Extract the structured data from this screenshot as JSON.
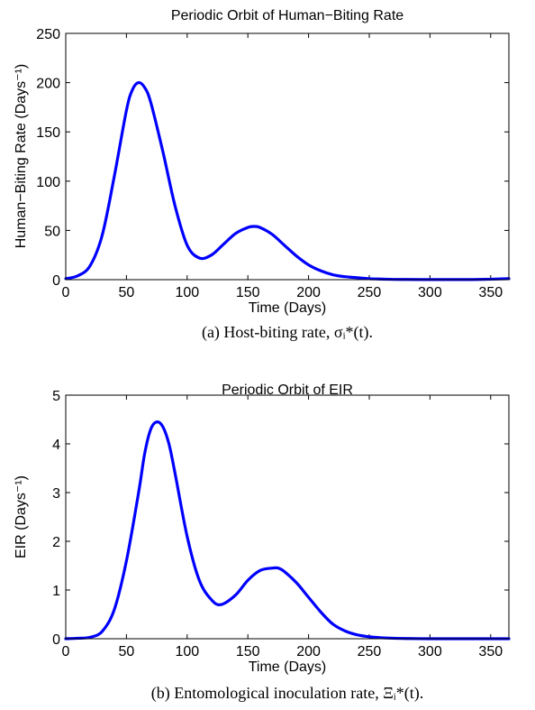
{
  "chart_data": [
    {
      "type": "line",
      "title": "Periodic Orbit of Human−Biting Rate",
      "xlabel": "Time (Days)",
      "ylabel": "Human−Biting Rate (Days⁻¹)",
      "xlim": [
        0,
        365
      ],
      "ylim": [
        0,
        250
      ],
      "xticks": [
        0,
        50,
        100,
        150,
        200,
        250,
        300,
        350
      ],
      "yticks": [
        0,
        50,
        100,
        150,
        200,
        250
      ],
      "grid": false,
      "caption": "(a)  Host-biting rate, σᵢ*(t).",
      "series": [
        {
          "color": "#0000ff",
          "x": [
            0,
            10,
            20,
            30,
            40,
            50,
            55,
            60,
            65,
            70,
            80,
            90,
            100,
            110,
            120,
            130,
            140,
            150,
            155,
            160,
            170,
            180,
            190,
            200,
            210,
            220,
            230,
            240,
            250,
            260,
            270,
            280,
            300,
            320,
            340,
            365
          ],
          "y": [
            1,
            4,
            14,
            45,
            105,
            172,
            193,
            200,
            195,
            180,
            130,
            75,
            35,
            22,
            25,
            36,
            47,
            53,
            54,
            53,
            46,
            35,
            24,
            15,
            9,
            5,
            3,
            2,
            1,
            0.6,
            0.3,
            0.2,
            0.1,
            0.1,
            0.2,
            1
          ]
        }
      ]
    },
    {
      "type": "line",
      "title": "Periodic Orbit of EIR",
      "xlabel": "Time (Days)",
      "ylabel": "EIR (Days⁻¹)",
      "xlim": [
        0,
        365
      ],
      "ylim": [
        0,
        5
      ],
      "xticks": [
        0,
        50,
        100,
        150,
        200,
        250,
        300,
        350
      ],
      "yticks": [
        0,
        1,
        2,
        3,
        4,
        5
      ],
      "grid": false,
      "caption": "(b)  Entomological inoculation rate, Ξᵢ*(t).",
      "series": [
        {
          "color": "#0000ff",
          "x": [
            0,
            10,
            20,
            30,
            40,
            50,
            60,
            65,
            70,
            75,
            80,
            85,
            90,
            100,
            110,
            120,
            128,
            140,
            150,
            160,
            170,
            175,
            180,
            190,
            200,
            210,
            220,
            230,
            240,
            250,
            260,
            270,
            280,
            300,
            320,
            340,
            365
          ],
          "y": [
            0,
            0.01,
            0.03,
            0.15,
            0.6,
            1.6,
            3.0,
            3.8,
            4.3,
            4.45,
            4.35,
            4.0,
            3.4,
            2.1,
            1.2,
            0.8,
            0.7,
            0.9,
            1.2,
            1.4,
            1.45,
            1.45,
            1.38,
            1.15,
            0.85,
            0.55,
            0.3,
            0.16,
            0.08,
            0.04,
            0.02,
            0.01,
            0.005,
            0,
            0,
            0,
            0
          ]
        }
      ]
    }
  ]
}
